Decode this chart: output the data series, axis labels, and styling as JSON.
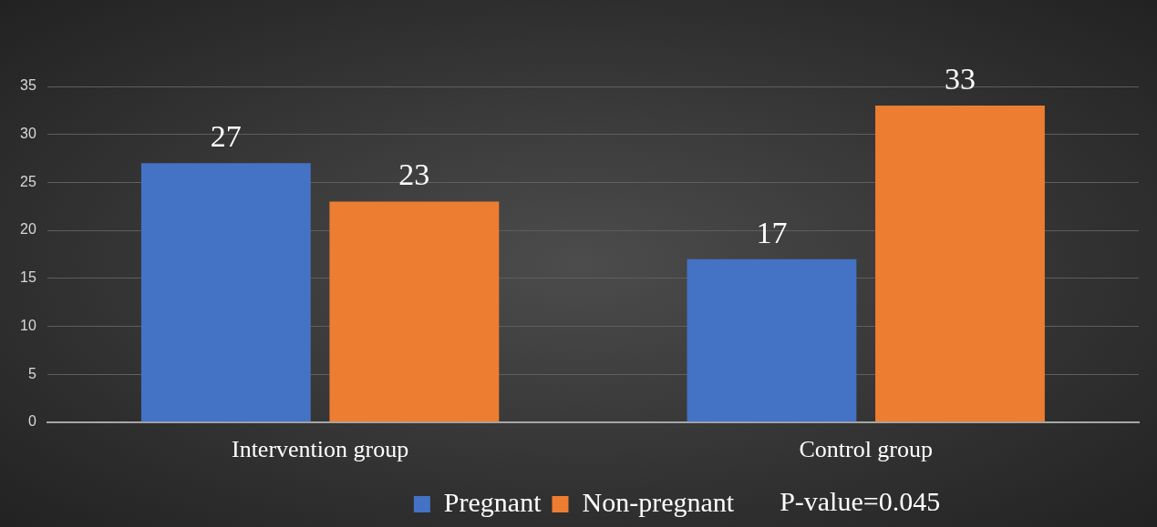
{
  "chart_data": {
    "type": "bar",
    "categories": [
      "Intervention group",
      "Control group"
    ],
    "series": [
      {
        "name": "Pregnant",
        "color": "#4472c4",
        "values": [
          27,
          17
        ]
      },
      {
        "name": "Non-pregnant",
        "color": "#ed7d31",
        "values": [
          23,
          33
        ]
      }
    ],
    "ylim": [
      0,
      35
    ],
    "yticks": [
      0,
      5,
      10,
      15,
      20,
      25,
      30,
      35
    ],
    "grid": "y",
    "legend": "bottom",
    "data_labels": true,
    "annotations": [
      "P-value=0.045"
    ]
  }
}
